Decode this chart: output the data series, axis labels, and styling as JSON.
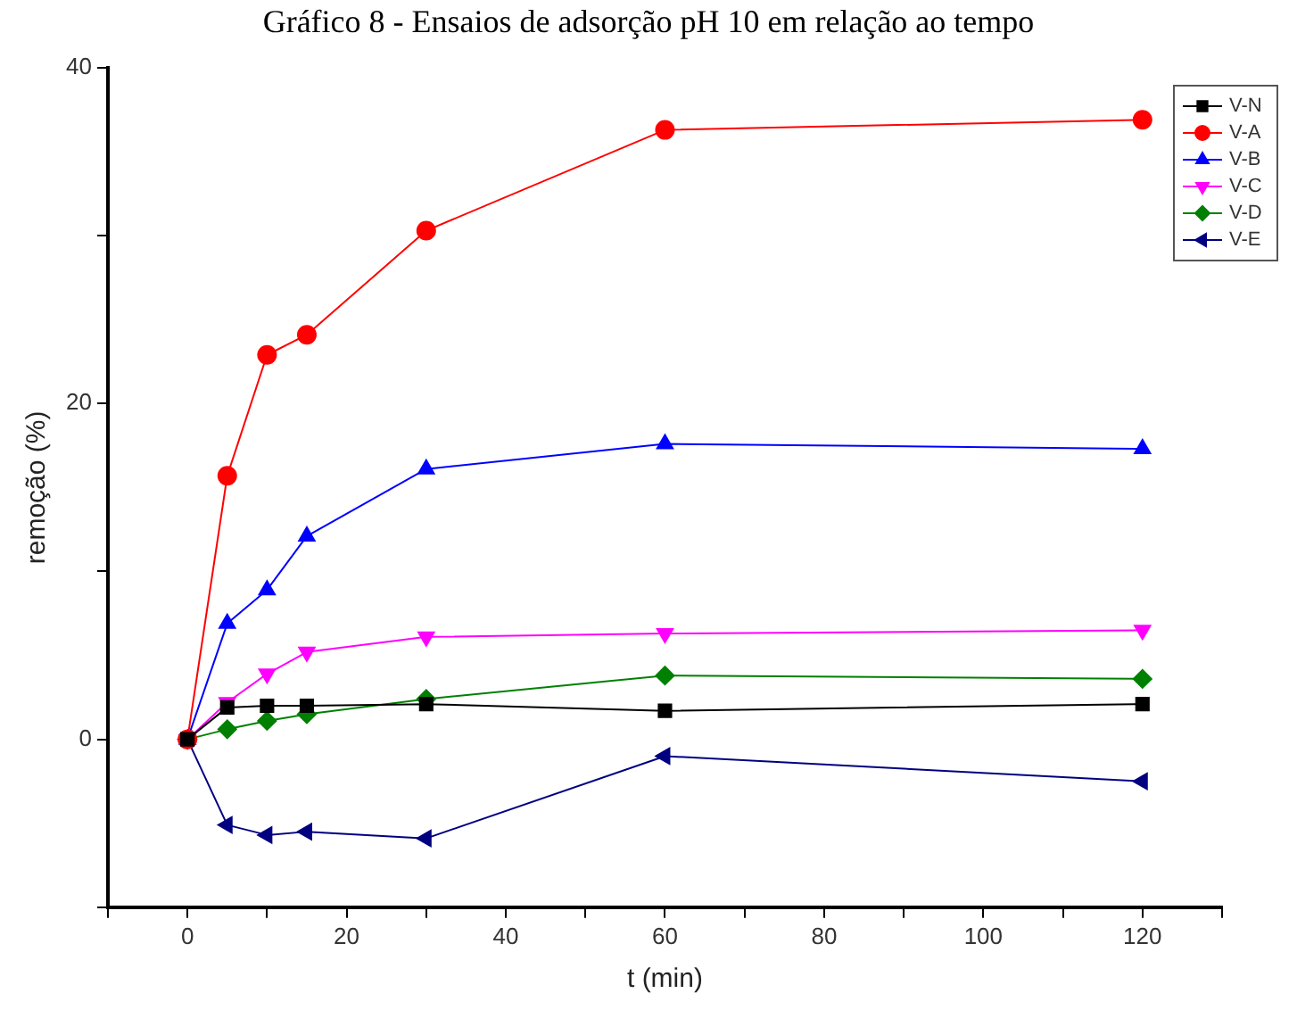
{
  "chart_data": {
    "type": "line",
    "title": "Gráfico 8 - Ensaios de adsorção pH 10 em relação ao tempo",
    "xlabel": "t (min)",
    "ylabel": "remoção (%)",
    "x": [
      0,
      5,
      10,
      15,
      30,
      60,
      120
    ],
    "series": [
      {
        "name": "V-N",
        "color": "#000000",
        "marker": "square",
        "values": [
          0,
          1.9,
          2.0,
          2.0,
          2.1,
          1.7,
          2.1
        ]
      },
      {
        "name": "V-A",
        "color": "#ff0000",
        "marker": "circle",
        "values": [
          0,
          15.7,
          22.9,
          24.1,
          30.3,
          36.3,
          36.9
        ]
      },
      {
        "name": "V-B",
        "color": "#0000ff",
        "marker": "triangle",
        "values": [
          0,
          6.9,
          8.9,
          12.1,
          16.1,
          17.6,
          17.3
        ]
      },
      {
        "name": "V-C",
        "color": "#ff00ff",
        "marker": "triangle-down",
        "values": [
          0,
          2.2,
          3.9,
          5.2,
          6.1,
          6.3,
          6.5
        ]
      },
      {
        "name": "V-D",
        "color": "#008000",
        "marker": "diamond",
        "values": [
          0,
          0.6,
          1.1,
          1.5,
          2.4,
          3.8,
          3.6
        ]
      },
      {
        "name": "V-E",
        "color": "#000080",
        "marker": "triangle-left",
        "values": [
          0,
          -5.1,
          -5.7,
          -5.5,
          -5.9,
          -1.0,
          -2.5
        ]
      }
    ],
    "xlim": [
      -10,
      130
    ],
    "xticks": [
      {
        "value": -10,
        "label": null
      },
      0,
      {
        "value": 10,
        "label": null
      },
      20,
      {
        "value": 30,
        "label": null
      },
      40,
      {
        "value": 50,
        "label": null
      },
      60,
      {
        "value": 70,
        "label": null
      },
      80,
      {
        "value": 90,
        "label": null
      },
      100,
      {
        "value": 110,
        "label": null
      },
      120,
      {
        "value": 130,
        "label": null
      }
    ],
    "ylim": [
      -10,
      40
    ],
    "yticks": [
      {
        "value": -10,
        "label": null
      },
      0,
      {
        "value": 10,
        "label": null
      },
      20,
      {
        "value": 30,
        "label": null
      },
      40
    ],
    "grid": false,
    "legend": "top right",
    "line_style": "solid"
  }
}
